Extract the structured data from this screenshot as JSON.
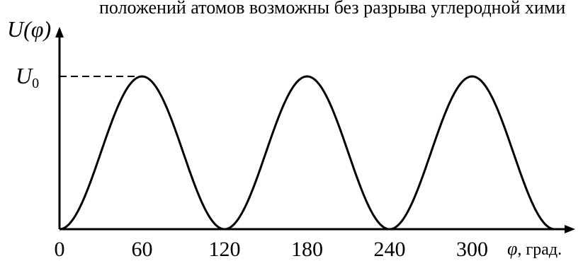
{
  "header_text": "положений атомов возможны без разрыва углеродной хими",
  "chart_data": {
    "type": "line",
    "title": "",
    "ylabel": "U(φ)",
    "xlabel_symbol": "φ",
    "xlabel_unit": ", град.",
    "y_level_label": "U",
    "y_level_subscript": "0",
    "x_ticks": [
      "0",
      "60",
      "120",
      "180",
      "240",
      "300"
    ],
    "xlim": [
      0,
      360
    ],
    "ylim": [
      0,
      1
    ],
    "series": [
      {
        "x": [
          0,
          15,
          30,
          45,
          60,
          75,
          90,
          105,
          120,
          135,
          150,
          165,
          180,
          195,
          210,
          225,
          240,
          255,
          270,
          285,
          300,
          315,
          330,
          345,
          360
        ],
        "values": [
          0,
          0.146,
          0.5,
          0.854,
          1,
          0.854,
          0.5,
          0.146,
          0,
          0.146,
          0.5,
          0.854,
          1,
          0.854,
          0.5,
          0.146,
          0,
          0.146,
          0.5,
          0.854,
          1,
          0.854,
          0.5,
          0.146,
          0
        ]
      }
    ],
    "reference_line": {
      "y": 1,
      "style": "dashed",
      "label": "U0"
    },
    "grid": false,
    "colors": {
      "line": "#000000",
      "axes": "#000000"
    }
  }
}
